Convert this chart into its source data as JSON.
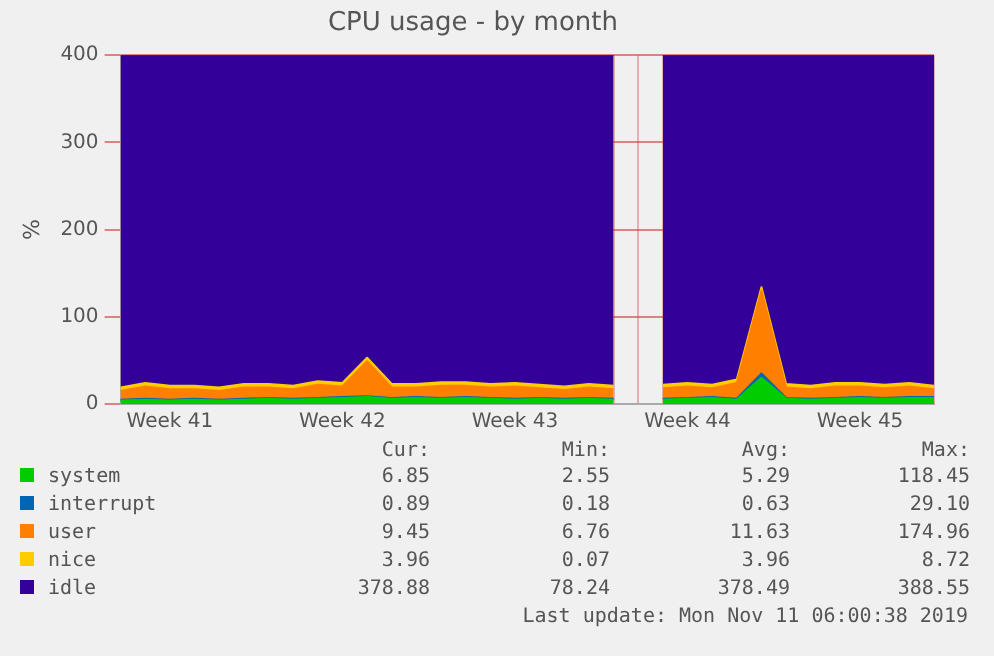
{
  "chart_data": {
    "type": "area",
    "title": "CPU usage - by month",
    "ylabel": "%",
    "stacked": true,
    "categories": [
      null,
      null,
      "Week 41",
      null,
      null,
      null,
      null,
      null,
      null,
      "Week 42",
      null,
      null,
      null,
      null,
      null,
      null,
      "Week 43",
      null,
      null,
      null,
      null,
      null,
      null,
      "Week 44",
      null,
      null,
      null,
      null,
      null,
      null,
      "Week 45",
      null,
      null,
      null
    ],
    "series": [
      {
        "name": "system",
        "color": "#00cc00",
        "values": [
          4,
          5,
          4,
          5,
          4,
          5,
          6,
          5,
          6,
          7,
          8,
          6,
          7,
          6,
          7,
          6,
          5,
          6,
          5,
          6,
          5,
          null,
          5,
          6,
          7,
          5,
          30,
          6,
          5,
          6,
          7,
          6,
          7,
          7
        ]
      },
      {
        "name": "interrupt",
        "color": "#0066b3",
        "values": [
          1,
          1,
          1,
          1,
          1,
          1,
          1,
          1,
          1,
          1,
          1,
          1,
          1,
          1,
          1,
          1,
          1,
          1,
          1,
          1,
          1,
          null,
          1,
          1,
          1,
          1,
          5,
          1,
          1,
          1,
          1,
          1,
          1,
          1
        ]
      },
      {
        "name": "user",
        "color": "#ff8000",
        "values": [
          10,
          14,
          12,
          11,
          10,
          13,
          12,
          11,
          15,
          12,
          40,
          12,
          11,
          14,
          13,
          12,
          14,
          11,
          10,
          12,
          11,
          null,
          12,
          13,
          10,
          18,
          95,
          12,
          11,
          13,
          12,
          11,
          12,
          9
        ]
      },
      {
        "name": "nice",
        "color": "#ffcc00",
        "values": [
          4,
          4,
          4,
          4,
          4,
          4,
          4,
          4,
          4,
          4,
          4,
          4,
          4,
          4,
          4,
          4,
          4,
          4,
          4,
          4,
          4,
          null,
          4,
          4,
          4,
          4,
          4,
          4,
          4,
          4,
          4,
          4,
          4,
          4
        ]
      },
      {
        "name": "idle",
        "color": "#330099",
        "values": [
          381,
          376,
          379,
          379,
          381,
          377,
          377,
          379,
          374,
          376,
          347,
          377,
          377,
          375,
          375,
          377,
          376,
          378,
          380,
          377,
          379,
          null,
          378,
          376,
          378,
          372,
          266,
          377,
          379,
          376,
          376,
          378,
          376,
          379
        ]
      }
    ],
    "ylim": [
      0,
      400
    ],
    "yticks": [
      0,
      100,
      200,
      300,
      400
    ],
    "grid": true,
    "legend": "bottom",
    "annotations": [
      "Cur:",
      "Min:",
      "Avg:",
      "Max:",
      "6.85",
      "2.55",
      "5.29",
      "118.45",
      "0.89",
      "0.18",
      "0.63",
      "29.10",
      "9.45",
      "6.76",
      "11.63",
      "174.96",
      "3.96",
      "0.07",
      "3.96",
      "8.72",
      "378.88",
      "78.24",
      "378.49",
      "388.55",
      "Last update: Mon Nov 11 06:00:38 2019"
    ]
  }
}
